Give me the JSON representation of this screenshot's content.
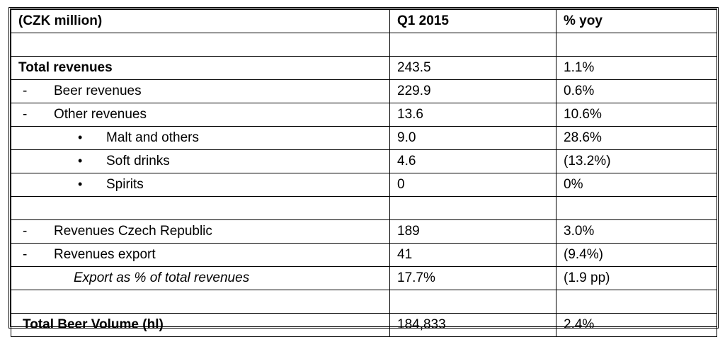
{
  "header": {
    "col1": "(CZK million)",
    "col2": "Q1 2015",
    "col3": "% yoy"
  },
  "rows": {
    "total_revenues": {
      "label": "Total revenues",
      "q1": "243.5",
      "yoy": "1.1%"
    },
    "beer_revenues": {
      "prefix": "-",
      "label": "Beer revenues",
      "q1": "229.9",
      "yoy": "0.6%"
    },
    "other_revenues": {
      "prefix": "-",
      "label": "Other revenues",
      "q1": "13.6",
      "yoy": "10.6%"
    },
    "malt": {
      "bullet": "•",
      "label": "Malt and others",
      "q1": "9.0",
      "yoy": "28.6%"
    },
    "soft_drinks": {
      "bullet": "•",
      "label": "Soft drinks",
      "q1": "4.6",
      "yoy": "(13.2%)"
    },
    "spirits": {
      "bullet": "•",
      "label": "Spirits",
      "q1": "0",
      "yoy": "0%"
    },
    "rev_cz": {
      "prefix": "-",
      "label": "Revenues Czech Republic",
      "q1": "189",
      "yoy": "3.0%"
    },
    "rev_export": {
      "prefix": "-",
      "label": "Revenues export",
      "q1": "41",
      "yoy": "(9.4%)"
    },
    "export_pct": {
      "label": "Export as % of total revenues",
      "q1": "17.7%",
      "yoy": "(1.9 pp)"
    },
    "beer_volume": {
      "label": "Total Beer Volume (hl)",
      "q1": "184,833",
      "yoy": "2.4%"
    }
  }
}
